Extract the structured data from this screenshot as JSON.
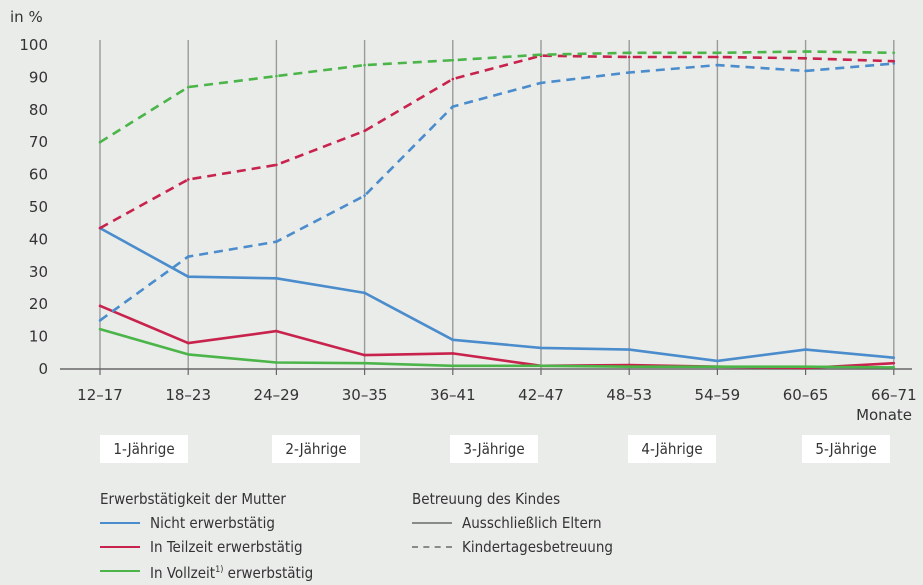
{
  "chart_data": {
    "type": "line",
    "ylabel": "in %",
    "xlabel": "Monate",
    "ylim": [
      0,
      100
    ],
    "yticks": [
      0,
      10,
      20,
      30,
      40,
      50,
      60,
      70,
      80,
      90,
      100
    ],
    "categories": [
      "12–17",
      "18–23",
      "24–29",
      "30–35",
      "36–41",
      "42–47",
      "48–53",
      "54–59",
      "60–65",
      "66–71"
    ],
    "age_groups": [
      "1-Jährige",
      "2-Jährige",
      "3-Jährige",
      "4-Jährige",
      "5-Jährige"
    ],
    "colors": {
      "nicht": "#4a8ccc",
      "teilzeit": "#c8234d",
      "vollzeit": "#4bb54a",
      "grid": "#9a9a9a",
      "axis": "#666666"
    },
    "series": [
      {
        "name": "Nicht erwerbstätig · Ausschließlich Eltern",
        "color_key": "nicht",
        "style": "solid",
        "values": [
          43.5,
          28.5,
          28,
          23.5,
          9,
          6.5,
          6,
          2.5,
          6,
          3.5
        ]
      },
      {
        "name": "In Teilzeit erwerbstätig · Ausschließlich Eltern",
        "color_key": "teilzeit",
        "style": "solid",
        "values": [
          19.5,
          8,
          11.7,
          4.3,
          4.8,
          1,
          1.2,
          0.7,
          0.3,
          1.8
        ]
      },
      {
        "name": "In Vollzeit erwerbstätig · Ausschließlich Eltern",
        "color_key": "vollzeit",
        "style": "solid",
        "values": [
          12.3,
          4.5,
          2,
          1.8,
          1,
          1,
          0.7,
          0.7,
          0.7,
          0.5
        ]
      },
      {
        "name": "Nicht erwerbstätig · Kindertagesbetreuung",
        "color_key": "nicht",
        "style": "dashed",
        "values": [
          15,
          34.7,
          39.3,
          53.5,
          81,
          88.3,
          91.5,
          93.8,
          92,
          94.3
        ]
      },
      {
        "name": "In Teilzeit erwerbstätig · Kindertagesbetreuung",
        "color_key": "teilzeit",
        "style": "dashed",
        "values": [
          43.5,
          58.5,
          63,
          73.5,
          89.5,
          96.7,
          96.3,
          96.3,
          95.9,
          95
        ]
      },
      {
        "name": "In Vollzeit erwerbstätig · Kindertagesbetreuung",
        "color_key": "vollzeit",
        "style": "dashed",
        "values": [
          70,
          87,
          90.4,
          93.8,
          95.3,
          97,
          97.6,
          97.6,
          98,
          97.6
        ]
      }
    ]
  },
  "legend": {
    "mother_heading": "Erwerbstätigkeit der Mutter",
    "nicht": "Nicht erwerbstätig",
    "teilzeit": "In Teilzeit erwerbstätig",
    "vollzeit_pre": "In Vollzeit",
    "vollzeit_sup": "1)",
    "vollzeit_post": " erwerbstätig",
    "care_heading": "Betreuung des Kindes",
    "eltern": "Ausschließlich Eltern",
    "kita": "Kindertagesbetreuung"
  }
}
